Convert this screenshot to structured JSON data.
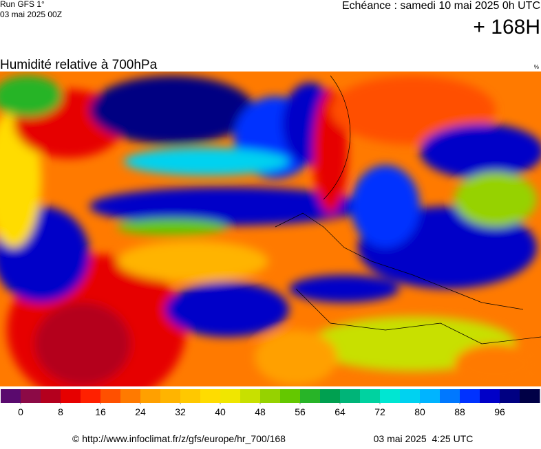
{
  "header": {
    "run": "Run GFS 1°",
    "run_date": "03 mai 2025 00Z",
    "valid": "Echéance : samedi 10 mai 2025 0h UTC",
    "lead": "+ 168H"
  },
  "map": {
    "title": "Humidité relative à 700hPa",
    "unit": "%"
  },
  "colorbar": {
    "lim": [
      -4,
      104
    ],
    "ticks": [
      0,
      8,
      16,
      24,
      32,
      40,
      48,
      56,
      64,
      72,
      80,
      88,
      96
    ],
    "colors": [
      "#5a0a6e",
      "#8c0a46",
      "#b4001e",
      "#e60000",
      "#ff2000",
      "#ff5000",
      "#ff7a00",
      "#ffa000",
      "#ffb400",
      "#ffc800",
      "#ffdc00",
      "#f0e600",
      "#c8e000",
      "#96d200",
      "#64c800",
      "#28b428",
      "#00a050",
      "#00b478",
      "#00d2a0",
      "#00e6d2",
      "#00d2f0",
      "#00b4ff",
      "#0078ff",
      "#0032ff",
      "#0000c8",
      "#000082",
      "#000046"
    ]
  },
  "footer": {
    "source": "© http://www.infoclimat.fr/z/gfs/europe/hr_700/168",
    "generated": "03 mai 2025  4:25 UTC"
  }
}
